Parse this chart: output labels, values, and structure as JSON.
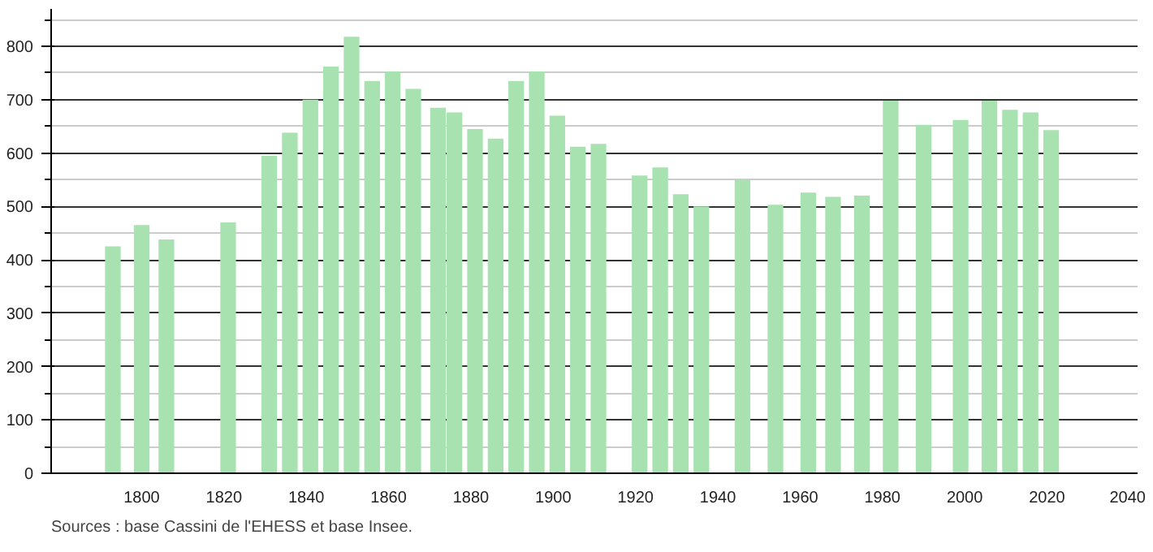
{
  "chart_data": {
    "type": "bar",
    "x": [
      1793,
      1800,
      1806,
      1821,
      1831,
      1836,
      1841,
      1846,
      1851,
      1856,
      1861,
      1866,
      1872,
      1876,
      1881,
      1886,
      1891,
      1896,
      1901,
      1906,
      1911,
      1921,
      1926,
      1931,
      1936,
      1946,
      1954,
      1962,
      1968,
      1975,
      1982,
      1990,
      1999,
      2006,
      2011,
      2016,
      2021
    ],
    "values": [
      425,
      465,
      438,
      470,
      595,
      638,
      700,
      762,
      818,
      735,
      753,
      720,
      685,
      676,
      645,
      627,
      735,
      753,
      670,
      612,
      617,
      558,
      573,
      523,
      500,
      550,
      503,
      526,
      518,
      520,
      698,
      653,
      662,
      698,
      681,
      676,
      643
    ],
    "color": "#a8e2b0",
    "xlim": [
      1778,
      2042
    ],
    "xticks": [
      1800,
      1820,
      1840,
      1860,
      1880,
      1900,
      1920,
      1940,
      1960,
      1980,
      2000,
      2020,
      2040
    ],
    "ylim": [
      0,
      870
    ],
    "yticks": [
      0,
      100,
      200,
      300,
      400,
      500,
      600,
      700,
      800
    ],
    "grid": "y",
    "annotations": [
      "Sources : base Cassini de l'EHESS et base Insee."
    ]
  }
}
